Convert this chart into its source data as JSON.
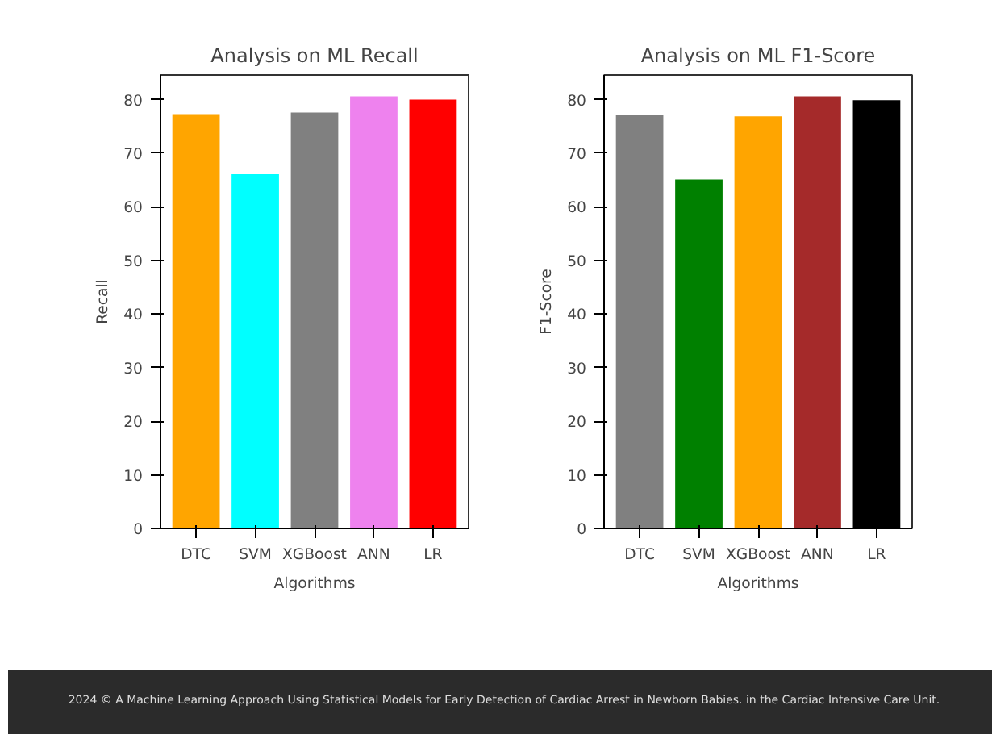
{
  "chart_data": [
    {
      "type": "bar",
      "title": "Analysis on ML Recall",
      "xlabel": "Algorithms",
      "ylabel": "Recall",
      "categories": [
        "DTC",
        "SVM",
        "XGBoost",
        "ANN",
        "LR"
      ],
      "values": [
        77.3,
        66.1,
        77.6,
        80.6,
        80.0
      ],
      "colors": [
        "#ffa500",
        "#00ffff",
        "#808080",
        "#ee82ee",
        "#ff0000"
      ],
      "ylim": [
        0,
        84.6
      ],
      "yticks": [
        0,
        10,
        20,
        30,
        40,
        50,
        60,
        70,
        80
      ],
      "grid": false
    },
    {
      "type": "bar",
      "title": "Analysis on ML F1-Score",
      "xlabel": "Algorithms",
      "ylabel": "F1-Score",
      "categories": [
        "DTC",
        "SVM",
        "XGBoost",
        "ANN",
        "LR"
      ],
      "values": [
        77.1,
        65.1,
        76.9,
        80.6,
        79.9
      ],
      "colors": [
        "#808080",
        "#008000",
        "#ffa500",
        "#a52a2a",
        "#000000"
      ],
      "ylim": [
        0,
        84.6
      ],
      "yticks": [
        0,
        10,
        20,
        30,
        40,
        50,
        60,
        70,
        80
      ],
      "grid": false,
      "annotations": [
        "2024 © A Machine Learning Approach Using Statistical Models for Early Detection of Cardiac Arrest in Newborn Babies. in the Cardiac Intensive Care Unit."
      ]
    }
  ]
}
